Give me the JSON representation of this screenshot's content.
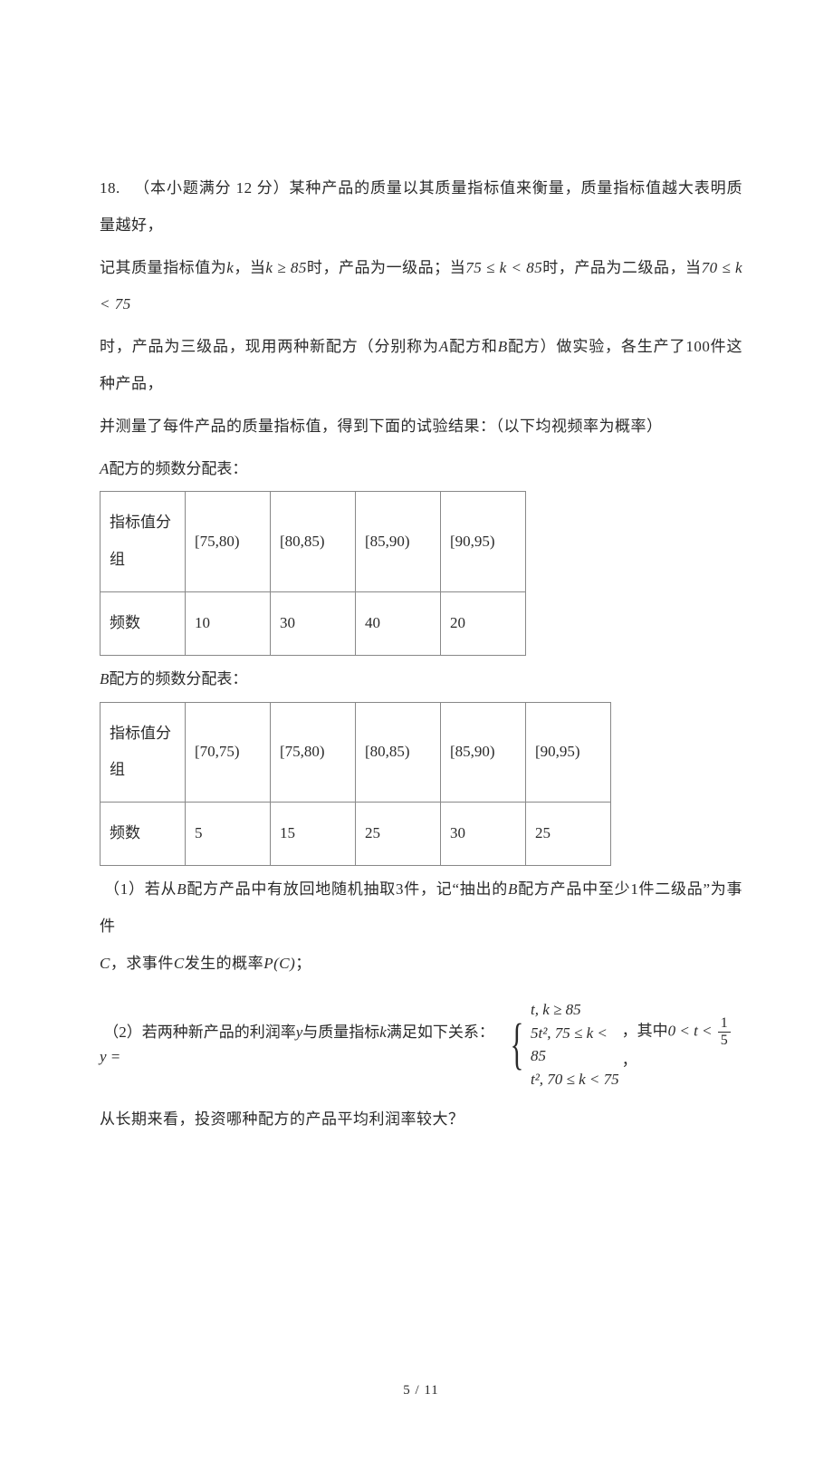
{
  "problem": {
    "number": "18.",
    "intro_1": "（本小题满分 12 分）某种产品的质量以其质量指标值来衡量，质量指标值越大表明质量越好，",
    "intro_2_a": "记其质量指标值为",
    "intro_2_b": "，当",
    "intro_2_c": "时，产品为一级品；当",
    "intro_2_d": "时，产品为二级品，当",
    "intro_3_a": "时，产品为三级品，现用两种新配方（分别称为",
    "intro_3_b": "配方和",
    "intro_3_c": "配方）做实验，各生产了",
    "intro_3_d": "件这种产品，",
    "intro_4": "并测量了每件产品的质量指标值，得到下面的试验结果：（以下均视频率为概率）",
    "k_var": "k",
    "cond1": "k ≥ 85",
    "cond2": "75 ≤ k < 85",
    "cond3": "70 ≤ k < 75",
    "A": "A",
    "B": "B",
    "hundred": "100"
  },
  "tableA": {
    "caption_a": "配方的频数分配表：",
    "row_head": "指标值分组",
    "row_freq": "频数",
    "cols": [
      "[75,80)",
      "[80,85)",
      "[85,90)",
      "[90,95)"
    ],
    "freqs": [
      "10",
      "30",
      "40",
      "20"
    ]
  },
  "tableB": {
    "caption_a": "配方的频数分配表：",
    "row_head": "指标值分组",
    "row_freq": "频数",
    "cols": [
      "[70,75)",
      "[75,80)",
      "[80,85)",
      "[85,90)",
      "[90,95)"
    ],
    "freqs": [
      "5",
      "15",
      "25",
      "30",
      "25"
    ]
  },
  "q1": {
    "line1_a": "（1）若从",
    "line1_b": "配方产品中有放回地随机抽取",
    "line1_c": "件，记“抽出的",
    "line1_d": "配方产品中至少",
    "line1_e": "件二级品”为事件",
    "three": "3",
    "one": "1",
    "C": "C",
    "line2_a": "，求事件",
    "line2_b": "发生的概率",
    "PC": "P(C)",
    "semicolon": "；"
  },
  "q2": {
    "lead_a": "（2）若两种新产品的利润率",
    "lead_b": "与质量指标",
    "lead_c": "满足如下关系：",
    "y": "y",
    "k": "k",
    "eq": "y =",
    "case1": "t, k ≥ 85",
    "case2": "5t², 75 ≤ k < 85",
    "case3": "t², 70 ≤ k < 75",
    "tail_a": "，其中",
    "tail_b": "0 < t <",
    "frac_num": "1",
    "frac_den": "5",
    "tail_c": "，"
  },
  "last": "从长期来看，投资哪种配方的产品平均利润率较大？",
  "footer": "5 / 11"
}
